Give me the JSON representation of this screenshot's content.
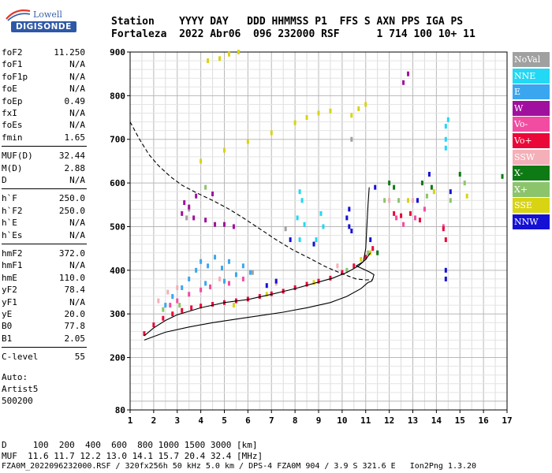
{
  "logo": {
    "top_text": "Lowell",
    "bottom_text": "DIGISONDE"
  },
  "header": {
    "line1": "Station    YYYY DAY   DDD HHMMSS P1  FFS S AXN PPS IGA PS",
    "line2": "Fortaleza  2022 Abr06  096 232000 RSF      1 714 100 10+ 11"
  },
  "params": [
    {
      "label": "foF2",
      "value": "11.250"
    },
    {
      "label": "foF1",
      "value": "N/A"
    },
    {
      "label": "foF1p",
      "value": "N/A"
    },
    {
      "label": "foE",
      "value": "N/A"
    },
    {
      "label": "foEp",
      "value": "0.49"
    },
    {
      "label": "fxI",
      "value": "N/A"
    },
    {
      "label": "foEs",
      "value": "N/A"
    },
    {
      "label": "fmin",
      "value": "1.65"
    },
    {
      "label": "MUF(D)",
      "value": "32.44"
    },
    {
      "label": "M(D)",
      "value": "2.88"
    },
    {
      "label": "D",
      "value": "N/A"
    },
    {
      "label": "h`F",
      "value": "250.0"
    },
    {
      "label": "h`F2",
      "value": "250.0"
    },
    {
      "label": "h`E",
      "value": "N/A"
    },
    {
      "label": "h`Es",
      "value": "N/A"
    },
    {
      "label": "hmF2",
      "value": "372.0"
    },
    {
      "label": "hmF1",
      "value": "N/A"
    },
    {
      "label": "hmE",
      "value": "110.0"
    },
    {
      "label": "yF2",
      "value": "78.4"
    },
    {
      "label": "yF1",
      "value": "N/A"
    },
    {
      "label": "yE",
      "value": "20.0"
    },
    {
      "label": "B0",
      "value": "77.8"
    },
    {
      "label": "B1",
      "value": "2.05"
    },
    {
      "label": "C-level",
      "value": "55"
    }
  ],
  "auto": {
    "l1": "Auto:",
    "l2": "Artist5",
    "l3": "500200"
  },
  "legend": [
    {
      "label": "NoVal",
      "color": "#a0a0a0"
    },
    {
      "label": "NNE",
      "color": "#22d8f4"
    },
    {
      "label": "E",
      "color": "#3aa6f0"
    },
    {
      "label": "W",
      "color": "#a0109e"
    },
    {
      "label": "Vo-",
      "color": "#f24ca2"
    },
    {
      "label": "Vo+",
      "color": "#ea0838"
    },
    {
      "label": "SSW",
      "color": "#f4b0b8"
    },
    {
      "label": "X-",
      "color": "#0e7a14"
    },
    {
      "label": "X+",
      "color": "#8cc46c"
    },
    {
      "label": "SSE",
      "color": "#d8d414"
    },
    {
      "label": "NNW",
      "color": "#1410d4"
    }
  ],
  "bottom": {
    "line1": "D     100  200  400  600  800 1000 1500 3000 [km]",
    "line2": "MUF  11.6 11.7 12.2 13.0 14.1 15.7 20.4 32.4 [MHz]"
  },
  "footer": "FZA0M_2022096232000.RSF / 320fx256h 50 kHz 5.0 km / DPS-4 FZA0M 904 / 3.9 S 321.6 E   Ion2Png 1.3.20",
  "chart_data": {
    "type": "scatter",
    "title": "",
    "xlabel": "",
    "ylabel": "",
    "xlim": [
      1,
      17
    ],
    "ylim": [
      80,
      900
    ],
    "x_ticks": [
      1,
      2,
      3,
      4,
      5,
      6,
      7,
      8,
      9,
      10,
      11,
      12,
      13,
      14,
      15,
      16,
      17
    ],
    "y_ticks": [
      80,
      200,
      300,
      400,
      500,
      600,
      700,
      800,
      900
    ],
    "grid": true,
    "series": [
      {
        "name": "NoVal",
        "points": [
          [
            3.4,
            520
          ],
          [
            3.5,
            540
          ],
          [
            10.4,
            700
          ],
          [
            7.6,
            495
          ],
          [
            6.2,
            395
          ]
        ]
      },
      {
        "name": "NNE",
        "points": [
          [
            14.4,
            680
          ],
          [
            14.4,
            700
          ],
          [
            14.4,
            730
          ],
          [
            14.5,
            745
          ],
          [
            8.2,
            580
          ],
          [
            8.3,
            560
          ],
          [
            8.1,
            520
          ],
          [
            8.4,
            505
          ],
          [
            8.2,
            470
          ],
          [
            9.1,
            530
          ],
          [
            9.2,
            500
          ],
          [
            8.9,
            470
          ]
        ]
      },
      {
        "name": "E",
        "points": [
          [
            3.5,
            380
          ],
          [
            3.8,
            400
          ],
          [
            4.0,
            420
          ],
          [
            4.3,
            410
          ],
          [
            4.6,
            430
          ],
          [
            4.9,
            405
          ],
          [
            5.2,
            420
          ],
          [
            5.5,
            390
          ],
          [
            5.8,
            410
          ],
          [
            6.1,
            395
          ],
          [
            3.2,
            360
          ],
          [
            2.8,
            340
          ],
          [
            2.5,
            320
          ],
          [
            4.2,
            370
          ],
          [
            5.0,
            375
          ]
        ]
      },
      {
        "name": "W",
        "points": [
          [
            3.3,
            555
          ],
          [
            3.5,
            545
          ],
          [
            3.7,
            520
          ],
          [
            4.2,
            515
          ],
          [
            4.6,
            505
          ],
          [
            5.0,
            505
          ],
          [
            5.4,
            500
          ],
          [
            12.8,
            850
          ],
          [
            12.6,
            830
          ],
          [
            3.8,
            570
          ],
          [
            4.5,
            575
          ],
          [
            3.2,
            530
          ]
        ]
      },
      {
        "name": "Vo-",
        "points": [
          [
            2.7,
            320
          ],
          [
            3.0,
            330
          ],
          [
            3.5,
            345
          ],
          [
            4.0,
            355
          ],
          [
            4.4,
            362
          ],
          [
            5.2,
            370
          ],
          [
            5.8,
            380
          ],
          [
            12.3,
            520
          ],
          [
            12.6,
            505
          ],
          [
            13.1,
            520
          ],
          [
            14.3,
            500
          ],
          [
            13.5,
            540
          ]
        ]
      },
      {
        "name": "Vo+",
        "points": [
          [
            1.6,
            255
          ],
          [
            2.0,
            275
          ],
          [
            2.4,
            290
          ],
          [
            2.8,
            300
          ],
          [
            3.2,
            308
          ],
          [
            3.6,
            314
          ],
          [
            4.0,
            318
          ],
          [
            4.5,
            322
          ],
          [
            5.0,
            326
          ],
          [
            5.5,
            330
          ],
          [
            6.0,
            334
          ],
          [
            6.5,
            340
          ],
          [
            7.0,
            346
          ],
          [
            7.5,
            352
          ],
          [
            8.0,
            360
          ],
          [
            8.5,
            368
          ],
          [
            9.0,
            375
          ],
          [
            9.5,
            382
          ],
          [
            10.0,
            395
          ],
          [
            10.5,
            410
          ],
          [
            11.0,
            430
          ],
          [
            11.3,
            450
          ],
          [
            12.2,
            530
          ],
          [
            12.5,
            525
          ],
          [
            12.9,
            530
          ],
          [
            13.3,
            515
          ],
          [
            14.3,
            495
          ],
          [
            14.4,
            470
          ]
        ]
      },
      {
        "name": "SSW",
        "points": [
          [
            2.2,
            330
          ],
          [
            2.6,
            350
          ],
          [
            3.0,
            360
          ],
          [
            4.8,
            380
          ],
          [
            7.2,
            370
          ],
          [
            9.8,
            410
          ],
          [
            12.0,
            560
          ],
          [
            13.0,
            560
          ]
        ]
      },
      {
        "name": "X-",
        "points": [
          [
            12.0,
            600
          ],
          [
            12.2,
            590
          ],
          [
            13.4,
            600
          ],
          [
            13.8,
            590
          ],
          [
            15.0,
            620
          ],
          [
            16.8,
            615
          ],
          [
            11.5,
            440
          ]
        ]
      },
      {
        "name": "X+",
        "points": [
          [
            11.8,
            560
          ],
          [
            12.4,
            560
          ],
          [
            13.6,
            570
          ],
          [
            14.6,
            560
          ],
          [
            15.2,
            600
          ],
          [
            2.4,
            310
          ],
          [
            3.1,
            320
          ],
          [
            4.2,
            590
          ],
          [
            10.2,
            400
          ],
          [
            11.1,
            440
          ]
        ]
      },
      {
        "name": "SSE",
        "points": [
          [
            4.0,
            650
          ],
          [
            5.0,
            675
          ],
          [
            6.0,
            695
          ],
          [
            7.0,
            715
          ],
          [
            8.0,
            738
          ],
          [
            8.5,
            750
          ],
          [
            9.0,
            760
          ],
          [
            9.5,
            765
          ],
          [
            4.3,
            880
          ],
          [
            4.8,
            885
          ],
          [
            5.2,
            895
          ],
          [
            5.6,
            900
          ],
          [
            10.4,
            755
          ],
          [
            10.7,
            770
          ],
          [
            11.0,
            780
          ],
          [
            5.4,
            320
          ],
          [
            6.8,
            345
          ],
          [
            8.8,
            372
          ],
          [
            10.8,
            425
          ],
          [
            11.2,
            440
          ],
          [
            12.8,
            560
          ],
          [
            13.9,
            580
          ],
          [
            15.3,
            570
          ]
        ]
      },
      {
        "name": "NNW",
        "points": [
          [
            10.3,
            500
          ],
          [
            10.2,
            520
          ],
          [
            10.3,
            540
          ],
          [
            10.4,
            490
          ],
          [
            8.8,
            460
          ],
          [
            7.8,
            470
          ],
          [
            11.2,
            470
          ],
          [
            13.2,
            560
          ],
          [
            13.7,
            620
          ],
          [
            14.6,
            580
          ],
          [
            6.8,
            365
          ],
          [
            7.2,
            375
          ],
          [
            11.4,
            590
          ],
          [
            14.4,
            400
          ],
          [
            14.4,
            380
          ]
        ]
      }
    ],
    "curves": [
      {
        "name": "profile-solid",
        "style": "solid",
        "points": [
          [
            1.6,
            240
          ],
          [
            2.5,
            258
          ],
          [
            3.5,
            270
          ],
          [
            4.5,
            280
          ],
          [
            5.5,
            288
          ],
          [
            6.5,
            296
          ],
          [
            7.5,
            304
          ],
          [
            8.5,
            314
          ],
          [
            9.5,
            326
          ],
          [
            10.2,
            340
          ],
          [
            10.8,
            358
          ],
          [
            11.1,
            372
          ],
          [
            11.25,
            375
          ],
          [
            11.3,
            380
          ],
          [
            11.35,
            390
          ],
          [
            11.2,
            395
          ],
          [
            11.0,
            400
          ],
          [
            10.6,
            410
          ],
          [
            10.9,
            420
          ],
          [
            11.0,
            450
          ],
          [
            11.05,
            500
          ],
          [
            11.1,
            550
          ],
          [
            11.15,
            590
          ]
        ]
      },
      {
        "name": "profile-dashed",
        "style": "dashed",
        "points": [
          [
            1.0,
            740
          ],
          [
            1.4,
            700
          ],
          [
            1.8,
            665
          ],
          [
            2.2,
            640
          ],
          [
            2.7,
            615
          ],
          [
            3.2,
            595
          ],
          [
            3.8,
            578
          ],
          [
            4.5,
            560
          ],
          [
            5.2,
            540
          ],
          [
            5.8,
            520
          ],
          [
            6.5,
            495
          ],
          [
            7.2,
            470
          ],
          [
            7.9,
            447
          ],
          [
            8.6,
            428
          ],
          [
            9.3,
            408
          ],
          [
            10.0,
            392
          ],
          [
            10.6,
            380
          ],
          [
            11.0,
            378
          ],
          [
            11.3,
            378
          ]
        ]
      },
      {
        "name": "trace-fit",
        "style": "solid",
        "points": [
          [
            1.6,
            250
          ],
          [
            2.0,
            268
          ],
          [
            2.5,
            285
          ],
          [
            3.0,
            298
          ],
          [
            3.5,
            306
          ],
          [
            4.0,
            314
          ],
          [
            4.5,
            320
          ],
          [
            5.0,
            326
          ],
          [
            6.0,
            333
          ],
          [
            7.0,
            345
          ],
          [
            8.0,
            358
          ],
          [
            9.0,
            373
          ],
          [
            9.6,
            382
          ],
          [
            10.2,
            395
          ],
          [
            10.7,
            410
          ],
          [
            11.0,
            425
          ],
          [
            11.2,
            440
          ]
        ]
      }
    ]
  }
}
